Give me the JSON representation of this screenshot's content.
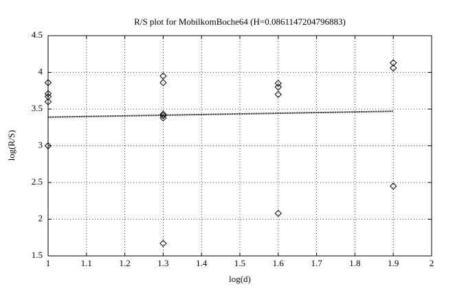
{
  "chart_data": {
    "type": "scatter",
    "title": "R/S plot for MobilkomBoche64 (H=0.0861147204796883)",
    "x_label": "log(d)",
    "y_label": "log(R/S)",
    "xlim": [
      1,
      2
    ],
    "xticks": [
      1,
      1.1,
      1.2,
      1.3,
      1.4,
      1.5,
      1.6,
      1.7,
      1.8,
      1.9,
      2
    ],
    "ylim": [
      1.5,
      4.5
    ],
    "yticks": [
      1.5,
      2,
      2.5,
      3,
      3.5,
      4,
      4.5
    ],
    "grid": true,
    "series": [
      {
        "marker": "diamond",
        "color": "#000000",
        "x": [
          1,
          1,
          1,
          1,
          1,
          1.3,
          1.3,
          1.3,
          1.3,
          1.3,
          1.3,
          1.6,
          1.6,
          1.6,
          1.6,
          1.9,
          1.9,
          1.9
        ],
        "values": [
          3.86,
          3.71,
          3.67,
          3.6,
          3.0,
          3.95,
          3.86,
          3.43,
          3.41,
          3.38,
          1.67,
          3.85,
          3.8,
          3.7,
          2.08,
          4.13,
          4.06,
          2.45
        ]
      },
      {
        "line": "dotted",
        "color": "#000000",
        "x": [
          1,
          1.9
        ],
        "values": [
          3.39,
          3.47
        ]
      }
    ]
  }
}
